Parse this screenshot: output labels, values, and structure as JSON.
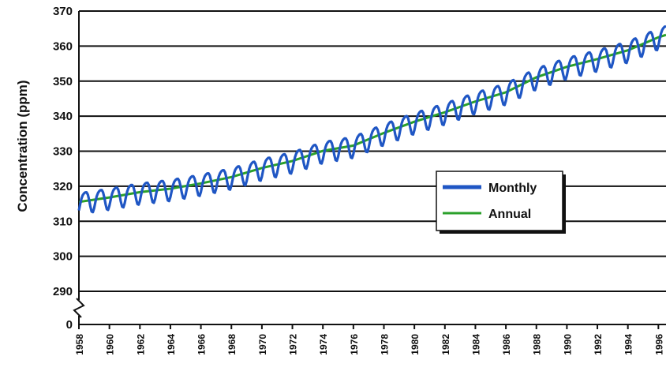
{
  "chart_data": {
    "type": "line",
    "title": "",
    "xlabel": "",
    "ylabel": "Concentration (ppm)",
    "grid": true,
    "legend_position": "right-center",
    "y_ticks": [
      "0",
      "290",
      "300",
      "310",
      "320",
      "330",
      "340",
      "350",
      "360",
      "370"
    ],
    "y_tick_values": [
      290,
      290,
      300,
      310,
      320,
      330,
      340,
      350,
      360,
      370
    ],
    "y_axis_break": true,
    "ylim": [
      290,
      370
    ],
    "xlim": [
      1958,
      1996.5
    ],
    "x_ticks": [
      "1958",
      "1960",
      "1962",
      "1964",
      "1966",
      "1968",
      "1970",
      "1972",
      "1974",
      "1976",
      "1978",
      "1980",
      "1982",
      "1984",
      "1986",
      "1988",
      "1990",
      "1992",
      "1994",
      "1996"
    ],
    "series": [
      {
        "name": "Monthly",
        "color": "#1f56c4",
        "seasonal_amplitude": 3.0,
        "x": [
          1958,
          1960,
          1962,
          1964,
          1966,
          1968,
          1970,
          1972,
          1974,
          1976,
          1978,
          1980,
          1982,
          1984,
          1986,
          1988,
          1990,
          1992,
          1994,
          1996,
          1996.5
        ],
        "trend": [
          315.5,
          316.8,
          318.3,
          319.3,
          320.8,
          322.6,
          325.2,
          327.2,
          330.1,
          331.6,
          335.2,
          338.4,
          341.1,
          344.2,
          346.8,
          351.1,
          354.1,
          356.3,
          358.8,
          362.5,
          363.2
        ]
      },
      {
        "name": "Annual",
        "color": "#2aa02a",
        "x": [
          1958,
          1960,
          1962,
          1964,
          1966,
          1968,
          1970,
          1972,
          1974,
          1976,
          1978,
          1980,
          1982,
          1984,
          1986,
          1988,
          1990,
          1992,
          1994,
          1996,
          1996.5
        ],
        "values": [
          315.5,
          316.8,
          318.3,
          319.3,
          320.8,
          322.6,
          325.2,
          327.2,
          330.1,
          331.6,
          335.2,
          338.4,
          341.1,
          344.2,
          346.8,
          351.1,
          354.1,
          356.3,
          358.8,
          362.5,
          363.2
        ]
      }
    ]
  }
}
